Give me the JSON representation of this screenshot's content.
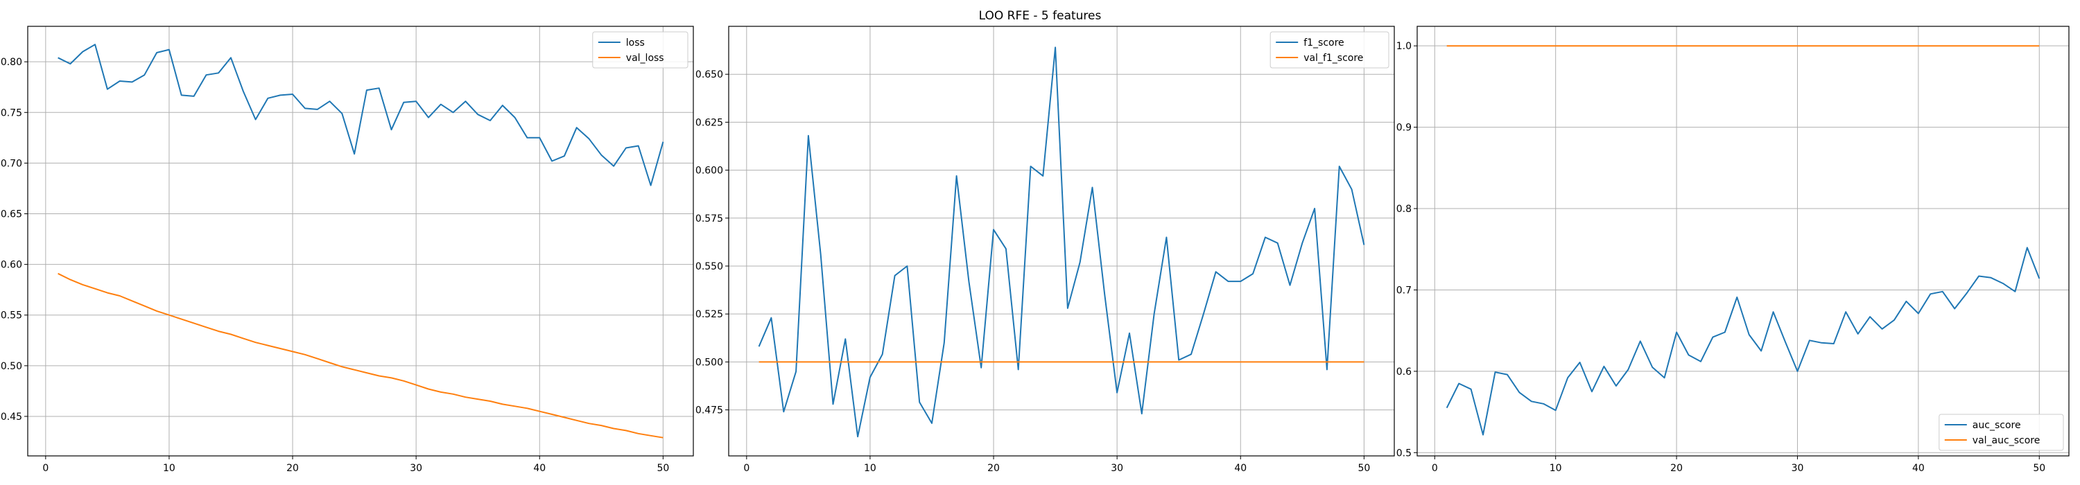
{
  "figure": {
    "suptitle": "LOO RFE - 5 features"
  },
  "colors": {
    "series1": "#1f77b4",
    "series2": "#ff7f0e",
    "grid": "#b0b0b0",
    "axes": "#000000"
  },
  "chart_data": [
    {
      "type": "line",
      "xlim": [
        -1.45,
        52.45
      ],
      "ylim": [
        0.411,
        0.835
      ],
      "xticks": [
        0,
        10,
        20,
        30,
        40,
        50
      ],
      "yticks": [
        0.45,
        0.5,
        0.55,
        0.6,
        0.65,
        0.7,
        0.75,
        0.8
      ],
      "ytick_format": 2,
      "grid": true,
      "legend_loc": "upper right",
      "x": [
        1,
        2,
        3,
        4,
        5,
        6,
        7,
        8,
        9,
        10,
        11,
        12,
        13,
        14,
        15,
        16,
        17,
        18,
        19,
        20,
        21,
        22,
        23,
        24,
        25,
        26,
        27,
        28,
        29,
        30,
        31,
        32,
        33,
        34,
        35,
        36,
        37,
        38,
        39,
        40,
        41,
        42,
        43,
        44,
        45,
        46,
        47,
        48,
        49,
        50
      ],
      "series": [
        {
          "name": "loss",
          "values": [
            0.804,
            0.798,
            0.81,
            0.817,
            0.773,
            0.781,
            0.78,
            0.787,
            0.809,
            0.812,
            0.767,
            0.766,
            0.787,
            0.789,
            0.804,
            0.771,
            0.743,
            0.764,
            0.767,
            0.768,
            0.754,
            0.753,
            0.761,
            0.749,
            0.709,
            0.772,
            0.774,
            0.733,
            0.76,
            0.761,
            0.745,
            0.758,
            0.75,
            0.761,
            0.748,
            0.742,
            0.757,
            0.745,
            0.725,
            0.725,
            0.702,
            0.707,
            0.735,
            0.724,
            0.708,
            0.697,
            0.715,
            0.717,
            0.678,
            0.721
          ]
        },
        {
          "name": "val_loss",
          "values": [
            0.591,
            0.585,
            0.58,
            0.576,
            0.572,
            0.569,
            0.564,
            0.559,
            0.554,
            0.55,
            0.546,
            0.542,
            0.538,
            0.534,
            0.531,
            0.527,
            0.523,
            0.52,
            0.517,
            0.514,
            0.511,
            0.507,
            0.503,
            0.499,
            0.496,
            0.493,
            0.49,
            0.488,
            0.485,
            0.481,
            0.477,
            0.474,
            0.472,
            0.469,
            0.467,
            0.465,
            0.462,
            0.46,
            0.458,
            0.455,
            0.452,
            0.449,
            0.446,
            0.443,
            0.441,
            0.438,
            0.436,
            0.433,
            0.431,
            0.429
          ]
        }
      ]
    },
    {
      "type": "line",
      "xlim": [
        -1.45,
        52.45
      ],
      "ylim": [
        0.451,
        0.675
      ],
      "xticks": [
        0,
        10,
        20,
        30,
        40,
        50
      ],
      "yticks": [
        0.475,
        0.5,
        0.525,
        0.55,
        0.575,
        0.6,
        0.625,
        0.65
      ],
      "ytick_format": 3,
      "grid": true,
      "legend_loc": "upper right",
      "x": [
        1,
        2,
        3,
        4,
        5,
        6,
        7,
        8,
        9,
        10,
        11,
        12,
        13,
        14,
        15,
        16,
        17,
        18,
        19,
        20,
        21,
        22,
        23,
        24,
        25,
        26,
        27,
        28,
        29,
        30,
        31,
        32,
        33,
        34,
        35,
        36,
        37,
        38,
        39,
        40,
        41,
        42,
        43,
        44,
        45,
        46,
        47,
        48,
        49,
        50
      ],
      "series": [
        {
          "name": "f1_score",
          "values": [
            0.508,
            0.523,
            0.474,
            0.495,
            0.618,
            0.556,
            0.478,
            0.512,
            0.461,
            0.492,
            0.504,
            0.545,
            0.55,
            0.479,
            0.468,
            0.51,
            0.597,
            0.542,
            0.497,
            0.569,
            0.559,
            0.496,
            0.602,
            0.597,
            0.664,
            0.528,
            0.552,
            0.591,
            0.535,
            0.484,
            0.515,
            0.473,
            0.525,
            0.565,
            0.501,
            0.504,
            0.525,
            0.547,
            0.542,
            0.542,
            0.546,
            0.565,
            0.562,
            0.54,
            0.562,
            0.58,
            0.496,
            0.602,
            0.59,
            0.561
          ]
        },
        {
          "name": "val_f1_score",
          "values": [
            0.5,
            0.5,
            0.5,
            0.5,
            0.5,
            0.5,
            0.5,
            0.5,
            0.5,
            0.5,
            0.5,
            0.5,
            0.5,
            0.5,
            0.5,
            0.5,
            0.5,
            0.5,
            0.5,
            0.5,
            0.5,
            0.5,
            0.5,
            0.5,
            0.5,
            0.5,
            0.5,
            0.5,
            0.5,
            0.5,
            0.5,
            0.5,
            0.5,
            0.5,
            0.5,
            0.5,
            0.5,
            0.5,
            0.5,
            0.5,
            0.5,
            0.5,
            0.5,
            0.5,
            0.5,
            0.5,
            0.5,
            0.5,
            0.5,
            0.5
          ]
        }
      ]
    },
    {
      "type": "line",
      "xlim": [
        -1.45,
        52.45
      ],
      "ylim": [
        0.496,
        1.024
      ],
      "xticks": [
        0,
        10,
        20,
        30,
        40,
        50
      ],
      "yticks": [
        0.5,
        0.6,
        0.7,
        0.8,
        0.9,
        1.0
      ],
      "ytick_format": 1,
      "grid": true,
      "legend_loc": "lower right",
      "x": [
        1,
        2,
        3,
        4,
        5,
        6,
        7,
        8,
        9,
        10,
        11,
        12,
        13,
        14,
        15,
        16,
        17,
        18,
        19,
        20,
        21,
        22,
        23,
        24,
        25,
        26,
        27,
        28,
        29,
        30,
        31,
        32,
        33,
        34,
        35,
        36,
        37,
        38,
        39,
        40,
        41,
        42,
        43,
        44,
        45,
        46,
        47,
        48,
        49,
        50
      ],
      "series": [
        {
          "name": "auc_score",
          "values": [
            0.555,
            0.585,
            0.578,
            0.522,
            0.599,
            0.596,
            0.574,
            0.563,
            0.56,
            0.552,
            0.592,
            0.611,
            0.575,
            0.606,
            0.582,
            0.602,
            0.637,
            0.605,
            0.592,
            0.648,
            0.62,
            0.612,
            0.642,
            0.648,
            0.691,
            0.645,
            0.625,
            0.673,
            0.636,
            0.6,
            0.638,
            0.635,
            0.634,
            0.673,
            0.646,
            0.667,
            0.652,
            0.663,
            0.686,
            0.671,
            0.695,
            0.698,
            0.677,
            0.696,
            0.717,
            0.715,
            0.708,
            0.698,
            0.752,
            0.714
          ]
        },
        {
          "name": "val_auc_score",
          "values": [
            1,
            1,
            1,
            1,
            1,
            1,
            1,
            1,
            1,
            1,
            1,
            1,
            1,
            1,
            1,
            1,
            1,
            1,
            1,
            1,
            1,
            1,
            1,
            1,
            1,
            1,
            1,
            1,
            1,
            1,
            1,
            1,
            1,
            1,
            1,
            1,
            1,
            1,
            1,
            1,
            1,
            1,
            1,
            1,
            1,
            1,
            1,
            1,
            1,
            1
          ]
        }
      ]
    }
  ]
}
